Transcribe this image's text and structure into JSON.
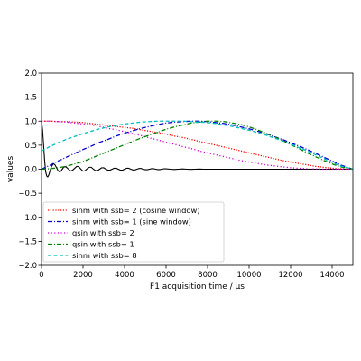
{
  "chart_data": {
    "type": "line",
    "xlabel": "F1 acquisition time / µs",
    "ylabel": "values",
    "xlim": [
      0,
      15000
    ],
    "ylim": [
      -2.0,
      2.0
    ],
    "xticks": [
      "0",
      "2000",
      "4000",
      "6000",
      "8000",
      "10000",
      "12000",
      "14000"
    ],
    "yticks": [
      "−2.0",
      "−1.5",
      "−1.0",
      "−0.5",
      "0.0",
      "0.5",
      "1.0",
      "1.5",
      "2.0"
    ],
    "grid": false,
    "legend_position": "lower-left",
    "x": [
      0,
      400,
      800,
      1200,
      1600,
      2000,
      2400,
      2800,
      3200,
      3600,
      4000,
      4400,
      4800,
      5200,
      5600,
      6000,
      6400,
      6800,
      7200,
      7600,
      8000,
      8400,
      8800,
      9200,
      9600,
      10000,
      10400,
      10800,
      11200,
      11600,
      12000,
      12400,
      12800,
      13200,
      13600,
      14000,
      14400,
      15000
    ],
    "series": [
      {
        "name": "sinm with ssb= 2 (cosine window)",
        "color": "#ff0000",
        "dash": "dotted-dense",
        "values": [
          1.0,
          1.0,
          0.99,
          0.99,
          0.98,
          0.97,
          0.95,
          0.93,
          0.91,
          0.89,
          0.87,
          0.85,
          0.82,
          0.79,
          0.76,
          0.73,
          0.69,
          0.66,
          0.62,
          0.58,
          0.54,
          0.5,
          0.46,
          0.42,
          0.38,
          0.34,
          0.3,
          0.26,
          0.22,
          0.18,
          0.15,
          0.12,
          0.09,
          0.06,
          0.04,
          0.02,
          0.01,
          0.0
        ]
      },
      {
        "name": "sinm with ssb= 1 (sine window)",
        "color": "#0000cc",
        "dash": "dashdot",
        "values": [
          0.0,
          0.08,
          0.17,
          0.25,
          0.33,
          0.41,
          0.48,
          0.56,
          0.62,
          0.69,
          0.75,
          0.8,
          0.85,
          0.89,
          0.93,
          0.96,
          0.98,
          0.99,
          1.0,
          1.0,
          0.99,
          0.97,
          0.95,
          0.92,
          0.88,
          0.84,
          0.79,
          0.74,
          0.68,
          0.62,
          0.55,
          0.48,
          0.41,
          0.33,
          0.25,
          0.17,
          0.09,
          0.0
        ]
      },
      {
        "name": "qsin with ssb= 2",
        "color": "#cc00cc",
        "dash": "dotted",
        "values": [
          1.0,
          1.0,
          0.99,
          0.98,
          0.96,
          0.94,
          0.92,
          0.89,
          0.85,
          0.82,
          0.78,
          0.74,
          0.7,
          0.65,
          0.61,
          0.56,
          0.52,
          0.47,
          0.43,
          0.38,
          0.34,
          0.3,
          0.26,
          0.22,
          0.18,
          0.15,
          0.12,
          0.09,
          0.07,
          0.05,
          0.03,
          0.02,
          0.01,
          0.005,
          0.0,
          0.0,
          0.0,
          0.0
        ]
      },
      {
        "name": "qsin with ssb= 1",
        "color": "#007f00",
        "dash": "dashdot",
        "values": [
          0.0,
          0.01,
          0.03,
          0.06,
          0.11,
          0.16,
          0.23,
          0.3,
          0.37,
          0.44,
          0.51,
          0.58,
          0.65,
          0.71,
          0.77,
          0.83,
          0.88,
          0.92,
          0.96,
          0.98,
          1.0,
          1.0,
          0.99,
          0.96,
          0.93,
          0.88,
          0.82,
          0.75,
          0.68,
          0.6,
          0.51,
          0.43,
          0.34,
          0.26,
          0.18,
          0.11,
          0.05,
          0.0
        ]
      },
      {
        "name": "sinm with ssb= 8",
        "color": "#00bfbf",
        "dash": "dashed",
        "values": [
          0.38,
          0.47,
          0.55,
          0.62,
          0.68,
          0.74,
          0.79,
          0.84,
          0.88,
          0.91,
          0.94,
          0.96,
          0.98,
          0.99,
          1.0,
          1.0,
          1.0,
          1.0,
          0.99,
          0.98,
          0.97,
          0.95,
          0.92,
          0.89,
          0.85,
          0.81,
          0.76,
          0.71,
          0.65,
          0.59,
          0.52,
          0.45,
          0.38,
          0.3,
          0.22,
          0.14,
          0.07,
          0.0
        ]
      }
    ],
    "signal": {
      "x": [
        0,
        50,
        100,
        150,
        200,
        250,
        300,
        350,
        400,
        450,
        500,
        550,
        600,
        650,
        700,
        750,
        800,
        850,
        900,
        950,
        1000,
        1050,
        1100,
        1150,
        1200,
        1300,
        1400,
        1500,
        1600,
        1700,
        1800,
        1900,
        2000,
        2100,
        2200,
        2300,
        2400,
        2500,
        2600,
        2700,
        2800,
        2900,
        3000,
        3100,
        3200,
        3300,
        3400,
        3500,
        3600,
        3700,
        3800,
        3900,
        4000,
        4100,
        4200,
        4300,
        4400,
        4500,
        4600,
        4700,
        4800,
        4900,
        5000,
        5100,
        5200,
        5300,
        5400,
        5500,
        5600,
        5700,
        5800,
        5900,
        6000,
        6200,
        6400,
        6600,
        6800,
        7000,
        7200,
        7400,
        7600,
        7800,
        8000,
        8500,
        9000,
        10000,
        11000,
        12000,
        13000,
        14000,
        15000
      ],
      "values": [
        1.0,
        0.82,
        0.5,
        0.18,
        -0.05,
        -0.14,
        -0.16,
        -0.12,
        -0.05,
        0.02,
        0.07,
        0.1,
        0.11,
        0.09,
        0.05,
        0.01,
        -0.03,
        -0.05,
        -0.05,
        -0.03,
        0.0,
        0.03,
        0.05,
        0.05,
        0.04,
        0.0,
        -0.04,
        -0.02,
        0.02,
        0.06,
        0.05,
        0.0,
        -0.04,
        -0.03,
        0.01,
        0.04,
        0.04,
        0.0,
        -0.03,
        -0.03,
        0.0,
        0.03,
        0.03,
        0.0,
        -0.02,
        -0.02,
        0.0,
        0.02,
        0.02,
        0.0,
        -0.02,
        -0.02,
        0.0,
        0.02,
        0.02,
        0.0,
        -0.015,
        -0.015,
        0.0,
        0.015,
        0.015,
        0.0,
        -0.01,
        -0.01,
        0.0,
        0.01,
        0.01,
        0.0,
        -0.008,
        -0.008,
        0.0,
        0.008,
        0.008,
        0.0,
        -0.006,
        0.0,
        0.005,
        0.0,
        -0.004,
        0.0,
        0.003,
        0.0,
        0.0,
        0.0,
        0.0,
        0.0,
        0.0,
        0.0,
        0.0,
        0.0,
        0.0
      ]
    }
  }
}
